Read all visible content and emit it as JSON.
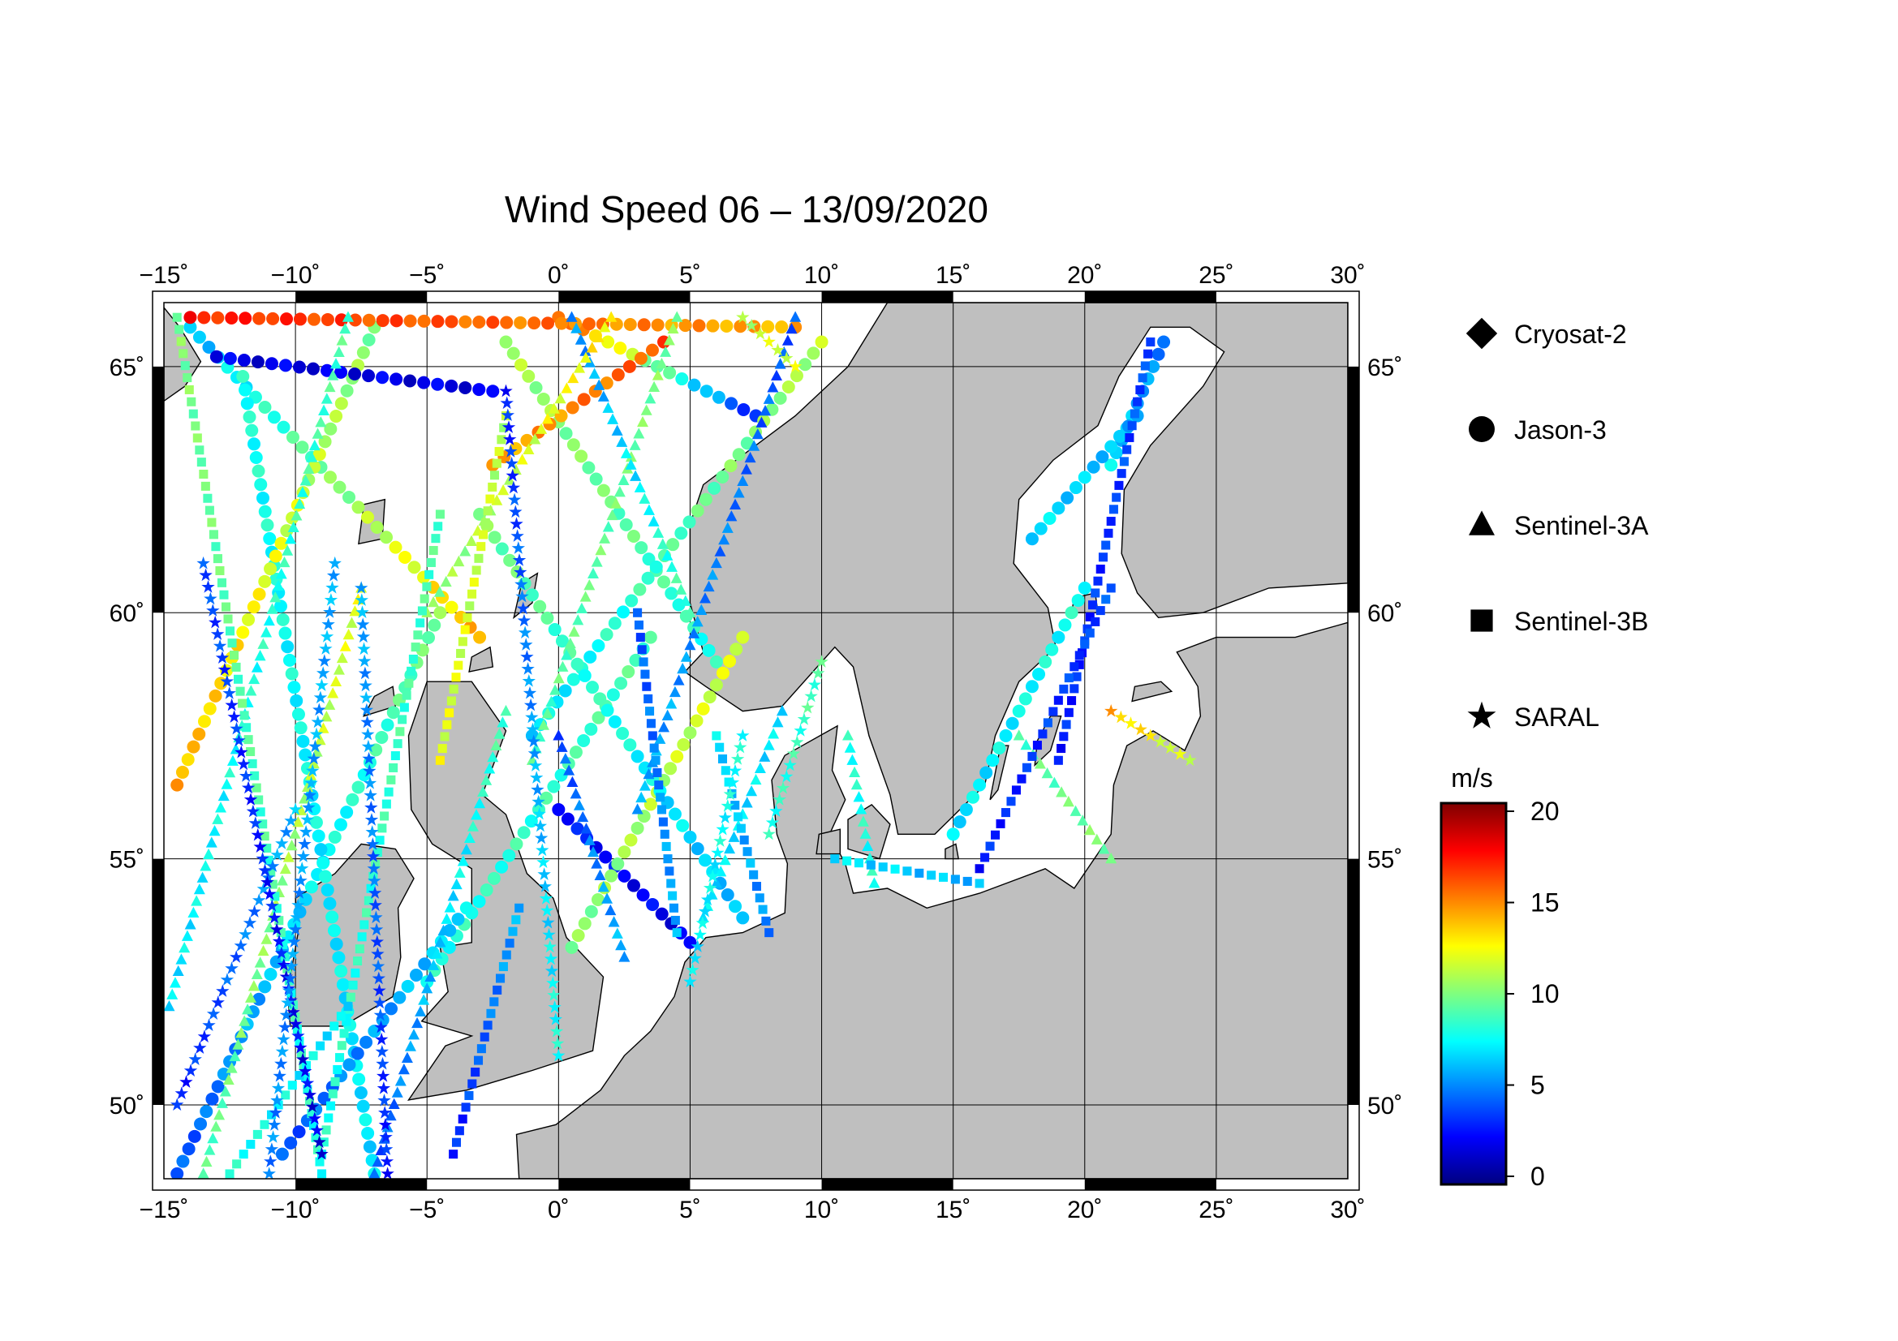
{
  "title": "Wind Speed 06 – 13/09/2020",
  "map": {
    "lon_range": [
      -15,
      30
    ],
    "lat_range": [
      48.5,
      66.3
    ],
    "lon_ticks": [
      -15,
      -10,
      -5,
      0,
      5,
      10,
      15,
      20,
      25,
      30
    ],
    "lat_ticks": [
      50,
      55,
      60,
      65
    ],
    "lon_tick_labels": [
      "−15˚",
      "−10˚",
      "−5˚",
      "0˚",
      "5˚",
      "10˚",
      "15˚",
      "20˚",
      "25˚",
      "30˚"
    ],
    "lat_tick_labels": [
      "50˚",
      "55˚",
      "60˚",
      "65˚"
    ],
    "grid": true,
    "land_color": "#bfbfbf",
    "sea_color": "#ffffff"
  },
  "legend": {
    "items": [
      {
        "label": "Cryosat-2",
        "marker": "diamond"
      },
      {
        "label": "Jason-3",
        "marker": "circle"
      },
      {
        "label": "Sentinel-3A",
        "marker": "triangle"
      },
      {
        "label": "Sentinel-3B",
        "marker": "square"
      },
      {
        "label": "SARAL",
        "marker": "star"
      }
    ]
  },
  "colorbar": {
    "unit": "m/s",
    "min": 0,
    "max": 20,
    "ticks": [
      0,
      5,
      10,
      15,
      20
    ],
    "tick_labels": [
      "0",
      "5",
      "10",
      "15",
      "20"
    ],
    "colors": [
      "#00007f",
      "#0000ff",
      "#007fff",
      "#00ffff",
      "#7fff7f",
      "#ffff00",
      "#ff7f00",
      "#ff0000",
      "#7f0000"
    ]
  },
  "chart_data": {
    "type": "scatter",
    "title": "Wind Speed 06 – 13/09/2020",
    "value_unit": "m/s",
    "value_range": [
      0,
      20
    ],
    "x_axis": "longitude",
    "y_axis": "latitude",
    "tracks": [
      {
        "satellite": "Jason-3",
        "marker": "circle",
        "start": [
          -14.5,
          48.6
        ],
        "end": [
          -4.5,
          60.0
        ],
        "wind_start": 4,
        "wind_end": 10
      },
      {
        "satellite": "Jason-3",
        "marker": "circle",
        "start": [
          -14.0,
          65.8
        ],
        "end": [
          -3.0,
          59.5
        ],
        "wind_start": 6,
        "wind_end": 14
      },
      {
        "satellite": "Jason-3",
        "marker": "circle",
        "start": [
          -12.0,
          64.8
        ],
        "end": [
          -7.0,
          48.6
        ],
        "wind_start": 8,
        "wind_end": 7
      },
      {
        "satellite": "Jason-3",
        "marker": "circle",
        "start": [
          -7.0,
          65.8
        ],
        "end": [
          -14.5,
          56.5
        ],
        "wind_start": 10,
        "wind_end": 14
      },
      {
        "satellite": "Jason-3",
        "marker": "circle",
        "start": [
          -2.0,
          65.5
        ],
        "end": [
          6.0,
          59.0
        ],
        "wind_start": 11,
        "wind_end": 8
      },
      {
        "satellite": "Jason-3",
        "marker": "circle",
        "start": [
          0.0,
          66.0
        ],
        "end": [
          7.5,
          64.0
        ],
        "wind_start": 16,
        "wind_end": 3
      },
      {
        "satellite": "Jason-3",
        "marker": "circle",
        "start": [
          -13.0,
          65.2
        ],
        "end": [
          -2.5,
          64.5
        ],
        "wind_start": 2,
        "wind_end": 2
      },
      {
        "satellite": "Jason-3",
        "marker": "circle",
        "start": [
          -2.5,
          63.0
        ],
        "end": [
          4.0,
          65.5
        ],
        "wind_start": 14,
        "wind_end": 16
      },
      {
        "satellite": "Jason-3",
        "marker": "circle",
        "start": [
          -14.0,
          66.0
        ],
        "end": [
          9.0,
          65.8
        ],
        "wind_start": 17,
        "wind_end": 14
      },
      {
        "satellite": "Jason-3",
        "marker": "circle",
        "start": [
          3.5,
          59.5
        ],
        "end": [
          -5.0,
          52.5
        ],
        "wind_start": 9,
        "wind_end": 8
      },
      {
        "satellite": "Jason-3",
        "marker": "circle",
        "start": [
          0.0,
          56.0
        ],
        "end": [
          5.0,
          53.3
        ],
        "wind_start": 3,
        "wind_end": 2
      },
      {
        "satellite": "Jason-3",
        "marker": "circle",
        "start": [
          -1.0,
          57.5
        ],
        "end": [
          10.0,
          65.5
        ],
        "wind_start": 7,
        "wind_end": 11
      },
      {
        "satellite": "Jason-3",
        "marker": "circle",
        "start": [
          0.5,
          53.2
        ],
        "end": [
          7.0,
          59.5
        ],
        "wind_start": 10,
        "wind_end": 12
      },
      {
        "satellite": "Jason-3",
        "marker": "circle",
        "start": [
          7.0,
          53.8
        ],
        "end": [
          -3.0,
          62.0
        ],
        "wind_start": 6,
        "wind_end": 10
      },
      {
        "satellite": "Jason-3",
        "marker": "circle",
        "start": [
          -10.5,
          49.0
        ],
        "end": [
          -3.5,
          54.0
        ],
        "wind_start": 4,
        "wind_end": 7
      },
      {
        "satellite": "Jason-3",
        "marker": "circle",
        "start": [
          15.0,
          55.5
        ],
        "end": [
          20.0,
          60.5
        ],
        "wind_start": 7,
        "wind_end": 8
      },
      {
        "satellite": "Jason-3",
        "marker": "circle",
        "start": [
          23.0,
          65.5
        ],
        "end": [
          21.0,
          63.0
        ],
        "wind_start": 5,
        "wind_end": 7
      },
      {
        "satellite": "Jason-3",
        "marker": "circle",
        "start": [
          18.0,
          61.5
        ],
        "end": [
          22.0,
          64.0
        ],
        "wind_start": 7,
        "wind_end": 6
      },
      {
        "satellite": "Sentinel-3A",
        "marker": "triangle",
        "start": [
          -14.8,
          52.0
        ],
        "end": [
          -8.0,
          66.0
        ],
        "wind_start": 7,
        "wind_end": 9
      },
      {
        "satellite": "Sentinel-3A",
        "marker": "triangle",
        "start": [
          -13.5,
          48.6
        ],
        "end": [
          -7.5,
          60.5
        ],
        "wind_start": 9,
        "wind_end": 12
      },
      {
        "satellite": "Sentinel-3A",
        "marker": "triangle",
        "start": [
          -7.0,
          48.6
        ],
        "end": [
          -2.0,
          58.0
        ],
        "wind_start": 4,
        "wind_end": 9
      },
      {
        "satellite": "Sentinel-3A",
        "marker": "triangle",
        "start": [
          -1.0,
          57.0
        ],
        "end": [
          4.5,
          66.0
        ],
        "wind_start": 9,
        "wind_end": 10
      },
      {
        "satellite": "Sentinel-3A",
        "marker": "triangle",
        "start": [
          5.0,
          60.0
        ],
        "end": [
          0.5,
          66.0
        ],
        "wind_start": 9,
        "wind_end": 5
      },
      {
        "satellite": "Sentinel-3A",
        "marker": "triangle",
        "start": [
          0.0,
          57.5
        ],
        "end": [
          2.5,
          53.0
        ],
        "wind_start": 4,
        "wind_end": 6
      },
      {
        "satellite": "Sentinel-3A",
        "marker": "triangle",
        "start": [
          3.0,
          56.0
        ],
        "end": [
          9.0,
          66.0
        ],
        "wind_start": 6,
        "wind_end": 4
      },
      {
        "satellite": "Sentinel-3A",
        "marker": "triangle",
        "start": [
          5.5,
          53.8
        ],
        "end": [
          8.5,
          58.0
        ],
        "wind_start": 7,
        "wind_end": 7
      },
      {
        "satellite": "Sentinel-3A",
        "marker": "triangle",
        "start": [
          -5.0,
          60.0
        ],
        "end": [
          2.0,
          66.0
        ],
        "wind_start": 10,
        "wind_end": 13
      },
      {
        "satellite": "Sentinel-3A",
        "marker": "triangle",
        "start": [
          11.0,
          57.5
        ],
        "end": [
          12.0,
          54.5
        ],
        "wind_start": 8,
        "wind_end": 8
      },
      {
        "satellite": "Sentinel-3A",
        "marker": "triangle",
        "start": [
          17.5,
          57.5
        ],
        "end": [
          21.0,
          55.0
        ],
        "wind_start": 9,
        "wind_end": 10
      },
      {
        "satellite": "Sentinel-3B",
        "marker": "square",
        "start": [
          -14.5,
          66.0
        ],
        "end": [
          -9.0,
          48.6
        ],
        "wind_start": 10,
        "wind_end": 8
      },
      {
        "satellite": "Sentinel-3B",
        "marker": "square",
        "start": [
          -9.0,
          49.0
        ],
        "end": [
          -4.5,
          62.0
        ],
        "wind_start": 8,
        "wind_end": 9
      },
      {
        "satellite": "Sentinel-3B",
        "marker": "square",
        "start": [
          -4.0,
          49.0
        ],
        "end": [
          -1.5,
          54.0
        ],
        "wind_start": 3,
        "wind_end": 6
      },
      {
        "satellite": "Sentinel-3B",
        "marker": "square",
        "start": [
          3.0,
          60.0
        ],
        "end": [
          4.5,
          53.5
        ],
        "wind_start": 4,
        "wind_end": 6
      },
      {
        "satellite": "Sentinel-3B",
        "marker": "square",
        "start": [
          6.0,
          57.5
        ],
        "end": [
          8.0,
          53.5
        ],
        "wind_start": 7,
        "wind_end": 5
      },
      {
        "satellite": "Sentinel-3B",
        "marker": "square",
        "start": [
          -2.0,
          64.0
        ],
        "end": [
          -4.5,
          57.0
        ],
        "wind_start": 11,
        "wind_end": 12
      },
      {
        "satellite": "Sentinel-3B",
        "marker": "square",
        "start": [
          22.5,
          65.5
        ],
        "end": [
          19.0,
          57.0
        ],
        "wind_start": 4,
        "wind_end": 3
      },
      {
        "satellite": "Sentinel-3B",
        "marker": "square",
        "start": [
          16.0,
          54.8
        ],
        "end": [
          21.0,
          60.5
        ],
        "wind_start": 3,
        "wind_end": 4
      },
      {
        "satellite": "Sentinel-3B",
        "marker": "square",
        "start": [
          10.5,
          55.0
        ],
        "end": [
          16.0,
          54.5
        ],
        "wind_start": 7,
        "wind_end": 6
      },
      {
        "satellite": "Sentinel-3B",
        "marker": "square",
        "start": [
          -12.5,
          48.6
        ],
        "end": [
          -8.0,
          52.0
        ],
        "wind_start": 8,
        "wind_end": 7
      },
      {
        "satellite": "SARAL",
        "marker": "star",
        "start": [
          -14.5,
          50.0
        ],
        "end": [
          -10.0,
          56.0
        ],
        "wind_start": 3,
        "wind_end": 6
      },
      {
        "satellite": "SARAL",
        "marker": "star",
        "start": [
          -13.5,
          61.0
        ],
        "end": [
          -9.0,
          49.0
        ],
        "wind_start": 4,
        "wind_end": 2
      },
      {
        "satellite": "SARAL",
        "marker": "star",
        "start": [
          -8.5,
          61.0
        ],
        "end": [
          -11.0,
          48.6
        ],
        "wind_start": 6,
        "wind_end": 5
      },
      {
        "satellite": "SARAL",
        "marker": "star",
        "start": [
          -6.5,
          48.6
        ],
        "end": [
          -7.5,
          60.5
        ],
        "wind_start": 3,
        "wind_end": 6
      },
      {
        "satellite": "SARAL",
        "marker": "star",
        "start": [
          0.0,
          51.0
        ],
        "end": [
          -2.0,
          64.5
        ],
        "wind_start": 8,
        "wind_end": 3
      },
      {
        "satellite": "SARAL",
        "marker": "star",
        "start": [
          5.0,
          52.5
        ],
        "end": [
          7.0,
          57.5
        ],
        "wind_start": 7,
        "wind_end": 8
      },
      {
        "satellite": "SARAL",
        "marker": "star",
        "start": [
          10.0,
          59.0
        ],
        "end": [
          8.0,
          55.5
        ],
        "wind_start": 9,
        "wind_end": 8
      },
      {
        "satellite": "SARAL",
        "marker": "star",
        "start": [
          21.0,
          58.0
        ],
        "end": [
          24.0,
          57.0
        ],
        "wind_start": 14,
        "wind_end": 11
      },
      {
        "satellite": "SARAL",
        "marker": "star",
        "start": [
          7.0,
          66.0
        ],
        "end": [
          9.0,
          65.0
        ],
        "wind_start": 11,
        "wind_end": 12
      }
    ]
  }
}
